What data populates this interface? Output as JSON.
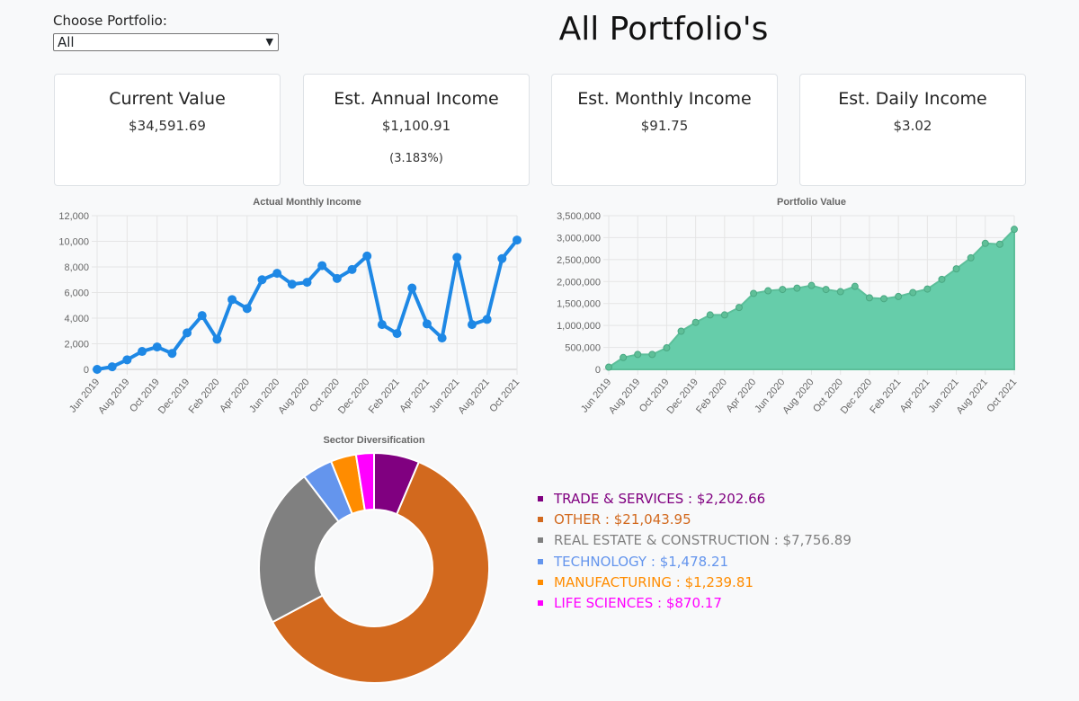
{
  "selector": {
    "label": "Choose Portfolio:",
    "value": "All"
  },
  "page_title": "All Portfolio's",
  "cards": [
    {
      "title": "Current Value",
      "value": "$34,591.69"
    },
    {
      "title": "Est. Annual Income",
      "value": "$1,100.91",
      "sub": "(3.183%)"
    },
    {
      "title": "Est. Monthly Income",
      "value": "$91.75"
    },
    {
      "title": "Est. Daily Income",
      "value": "$3.02"
    }
  ],
  "chart_data": [
    {
      "type": "line",
      "title": "Actual Monthly Income",
      "color": "#1e88e5",
      "ylim": [
        0,
        12000
      ],
      "yticks": [
        "0",
        "2,000",
        "4,000",
        "6,000",
        "8,000",
        "10,000",
        "12,000"
      ],
      "grid": true,
      "x": [
        "Jun 2019",
        "Jul 2019",
        "Aug 2019",
        "Sep 2019",
        "Oct 2019",
        "Nov 2019",
        "Dec 2019",
        "Jan 2020",
        "Feb 2020",
        "Mar 2020",
        "Apr 2020",
        "May 2020",
        "Jun 2020",
        "Jul 2020",
        "Aug 2020",
        "Sep 2020",
        "Oct 2020",
        "Nov 2020",
        "Dec 2020",
        "Jan 2021",
        "Feb 2021",
        "Mar 2021",
        "Apr 2021",
        "May 2021",
        "Jun 2021",
        "Jul 2021",
        "Aug 2021",
        "Sep 2021",
        "Oct 2021"
      ],
      "values": [
        0,
        200,
        750,
        1400,
        1750,
        1250,
        2850,
        4200,
        2350,
        5450,
        4750,
        7000,
        7500,
        6650,
        6800,
        8100,
        7100,
        7800,
        8850,
        3500,
        2800,
        6350,
        3550,
        2450,
        8750,
        3500,
        3900,
        8650,
        10100
      ]
    },
    {
      "type": "area",
      "title": "Portfolio Value",
      "color": "#66cdaa",
      "ylim": [
        0,
        3500000
      ],
      "yticks": [
        "0",
        "500,000",
        "1,000,000",
        "1,500,000",
        "2,000,000",
        "2,500,000",
        "3,000,000",
        "3,500,000"
      ],
      "grid": true,
      "x": [
        "Jun 2019",
        "Jul 2019",
        "Aug 2019",
        "Sep 2019",
        "Oct 2019",
        "Nov 2019",
        "Dec 2019",
        "Jan 2020",
        "Feb 2020",
        "Mar 2020",
        "Apr 2020",
        "May 2020",
        "Jun 2020",
        "Jul 2020",
        "Aug 2020",
        "Sep 2020",
        "Oct 2020",
        "Nov 2020",
        "Dec 2020",
        "Jan 2021",
        "Feb 2021",
        "Mar 2021",
        "Apr 2021",
        "May 2021",
        "Jun 2021",
        "Jul 2021",
        "Aug 2021",
        "Sep 2021",
        "Oct 2021"
      ],
      "values": [
        50000,
        270000,
        340000,
        340000,
        490000,
        870000,
        1070000,
        1240000,
        1240000,
        1410000,
        1730000,
        1790000,
        1820000,
        1850000,
        1910000,
        1820000,
        1770000,
        1890000,
        1630000,
        1610000,
        1660000,
        1750000,
        1830000,
        2050000,
        2290000,
        2540000,
        2870000,
        2850000,
        3190000
      ]
    },
    {
      "type": "pie",
      "title": "Sector Diversification",
      "legend": "right",
      "slices": [
        {
          "name": "TRADE & SERVICES",
          "value": 2202.66,
          "label": "$2,202.66",
          "color": "#800080"
        },
        {
          "name": "OTHER",
          "value": 21043.95,
          "label": "$21,043.95",
          "color": "#d2691e"
        },
        {
          "name": "REAL ESTATE & CONSTRUCTION",
          "value": 7756.89,
          "label": "$7,756.89",
          "color": "#808080"
        },
        {
          "name": "TECHNOLOGY",
          "value": 1478.21,
          "label": "$1,478.21",
          "color": "#6495ed"
        },
        {
          "name": "MANUFACTURING",
          "value": 1239.81,
          "label": "$1,239.81",
          "color": "#ff8c00"
        },
        {
          "name": "LIFE SCIENCES",
          "value": 870.17,
          "label": "$870.17",
          "color": "#ff00ff"
        }
      ]
    }
  ]
}
